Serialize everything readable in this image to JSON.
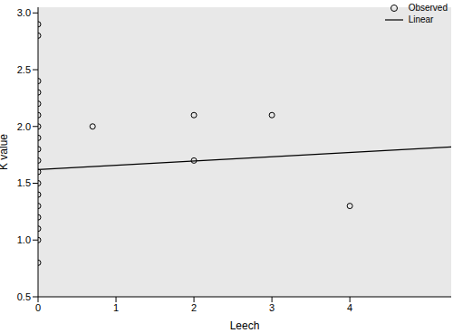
{
  "chart_data": {
    "type": "scatter",
    "x_label": "Leech",
    "y_label": "K value",
    "xlim": [
      0,
      5.3
    ],
    "xticks": [
      0,
      1,
      2,
      3,
      4
    ],
    "ylim": [
      0.5,
      3.05
    ],
    "yticks": [
      0.5,
      {
        "value": 1,
        "label": "1.0"
      },
      1.5,
      {
        "value": 2,
        "label": "2.0"
      },
      2.5,
      {
        "value": 3,
        "label": "3.0"
      }
    ],
    "legend": "upper right",
    "series": [
      {
        "name": "Observed",
        "type": "scatter",
        "marker": "circle",
        "color": "#000000",
        "x": [
          0,
          0,
          0,
          0,
          0,
          0,
          0,
          0,
          0,
          0,
          0,
          0,
          0,
          0,
          0,
          0,
          0,
          0,
          0.7,
          2,
          2,
          3,
          4
        ],
        "values": [
          0.8,
          1.0,
          1.1,
          1.2,
          1.3,
          1.4,
          1.5,
          1.6,
          1.7,
          1.8,
          1.9,
          2.0,
          2.1,
          2.2,
          2.3,
          2.4,
          2.8,
          2.9,
          2.0,
          2.1,
          1.7,
          2.1,
          1.3
        ]
      },
      {
        "name": "Linear",
        "type": "line",
        "color": "#000000",
        "x": [
          0,
          5.3
        ],
        "values": [
          1.62,
          1.82
        ]
      }
    ]
  }
}
